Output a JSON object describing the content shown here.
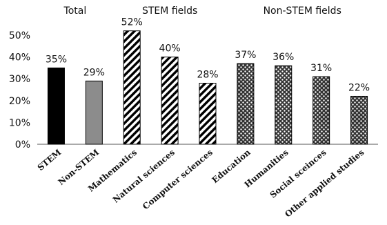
{
  "chart_data": {
    "type": "bar",
    "categories": [
      "STEM",
      "Non-STEM",
      "Mathematics",
      "Natural sciences",
      "Computer sciences",
      "Education",
      "Humanities",
      "Social sceinces",
      "Other applied studies"
    ],
    "values": [
      35,
      29,
      52,
      40,
      28,
      37,
      36,
      31,
      22
    ],
    "data_labels": [
      "35%",
      "29%",
      "52%",
      "40%",
      "28%",
      "37%",
      "36%",
      "31%",
      "22%"
    ],
    "fills": [
      "solid-black",
      "solid-gray",
      "diagonal-stripes",
      "diagonal-stripes",
      "diagonal-stripes",
      "dots",
      "dots",
      "dots",
      "dots"
    ],
    "groups": [
      {
        "label": "Total",
        "categories": [
          "STEM",
          "Non-STEM"
        ]
      },
      {
        "label": "STEM fields",
        "categories": [
          "Mathematics",
          "Natural sciences",
          "Computer sciences"
        ]
      },
      {
        "label": "Non-STEM fields",
        "categories": [
          "Education",
          "Humanities",
          "Social sceinces",
          "Other applied studies"
        ]
      }
    ],
    "yticks": [
      "0%",
      "10%",
      "20%",
      "30%",
      "40%",
      "50%"
    ],
    "ylim": [
      0,
      50
    ],
    "grid": false,
    "colors": {
      "black": "#000000",
      "gray": "#8c8c8c",
      "dark": "#333333"
    }
  }
}
